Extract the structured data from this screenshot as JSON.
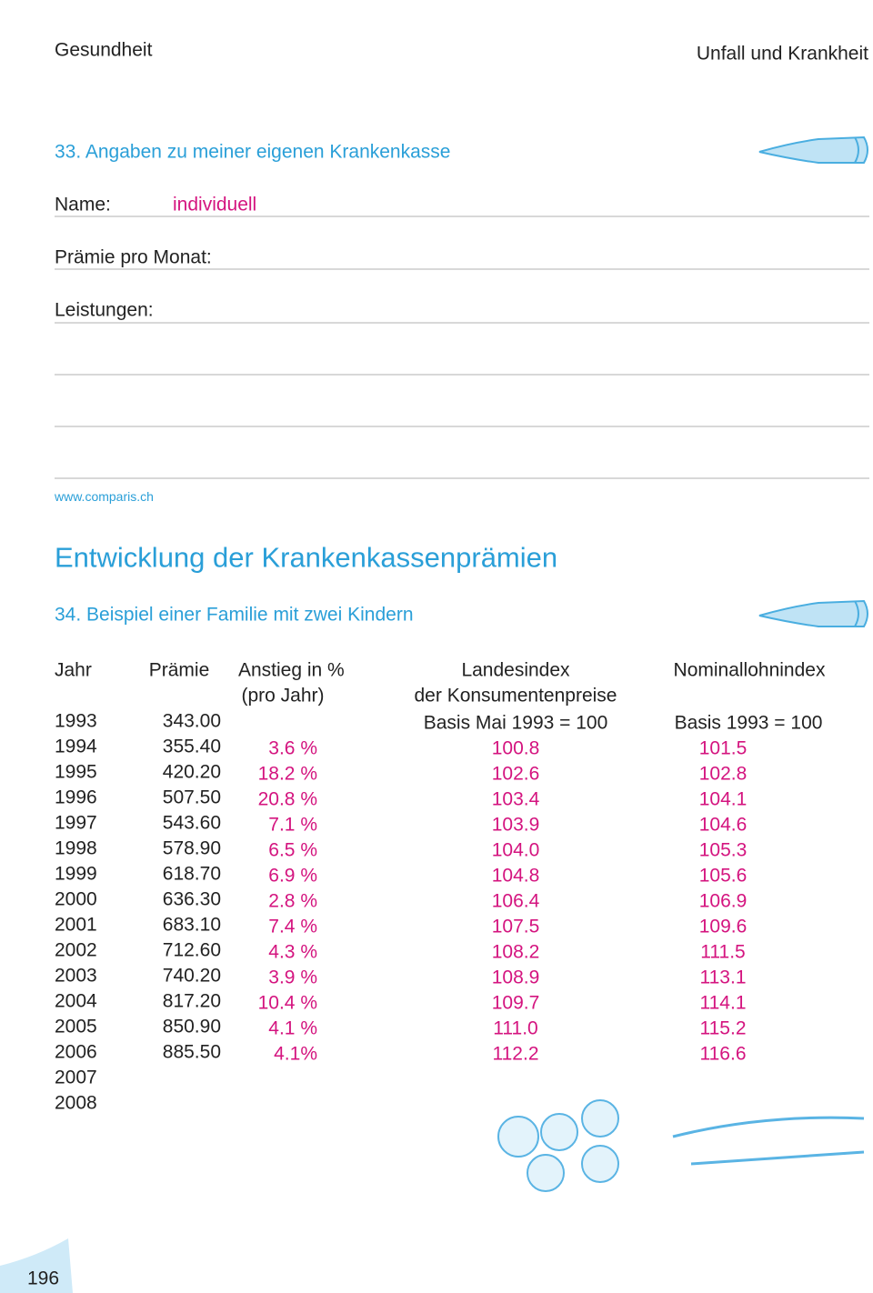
{
  "header": {
    "left": "Gesundheit",
    "right": "Unfall und Krankheit"
  },
  "section33": {
    "title": "33. Angaben zu meiner eigenen Krankenkasse",
    "name_label": "Name:",
    "name_value": "individuell",
    "praemie_label": "Prämie pro Monat:",
    "leistungen_label": "Leistungen:",
    "link": "www.comparis.ch"
  },
  "heading": "Entwicklung der Krankenkassenprämien",
  "section34": {
    "title": "34. Beispiel einer Familie mit zwei Kindern"
  },
  "table": {
    "headers": {
      "jahr": "Jahr",
      "praemie": "Prämie",
      "anstieg": "Anstieg in %",
      "anstieg_sub": "(pro Jahr)",
      "landesindex": "Landesindex",
      "landesindex_sub": "der Konsumentenpreise",
      "lohnindex": "Nominallohnindex"
    },
    "rows": [
      {
        "jahr": "1993",
        "praemie": "343.00",
        "landesindex": "Basis Mai 1993 = 100",
        "lohnindex": "Basis 1993 = 100"
      },
      {
        "jahr": "1994",
        "praemie": "355.40",
        "anstieg": "3.6 %",
        "landesindex": "100.8",
        "lohnindex": "101.5"
      },
      {
        "jahr": "1995",
        "praemie": "420.20",
        "anstieg": "18.2 %",
        "landesindex": "102.6",
        "lohnindex": "102.8"
      },
      {
        "jahr": "1996",
        "praemie": "507.50",
        "anstieg": "20.8 %",
        "landesindex": "103.4",
        "lohnindex": "104.1"
      },
      {
        "jahr": "1997",
        "praemie": "543.60",
        "anstieg": "7.1 %",
        "landesindex": "103.9",
        "lohnindex": "104.6"
      },
      {
        "jahr": "1998",
        "praemie": "578.90",
        "anstieg": "6.5 %",
        "landesindex": "104.0",
        "lohnindex": "105.3"
      },
      {
        "jahr": "1999",
        "praemie": "618.70",
        "anstieg": "6.9 %",
        "landesindex": "104.8",
        "lohnindex": "105.6"
      },
      {
        "jahr": "2000",
        "praemie": "636.30",
        "anstieg": "2.8 %",
        "landesindex": "106.4",
        "lohnindex": "106.9"
      },
      {
        "jahr": "2001",
        "praemie": "683.10",
        "anstieg": "7.4 %",
        "landesindex": "107.5",
        "lohnindex": "109.6"
      },
      {
        "jahr": "2002",
        "praemie": "712.60",
        "anstieg": "4.3 %",
        "landesindex": "108.2",
        "lohnindex": "111.5"
      },
      {
        "jahr": "2003",
        "praemie": "740.20",
        "anstieg": "3.9 %",
        "landesindex": "108.9",
        "lohnindex": "113.1"
      },
      {
        "jahr": "2004",
        "praemie": "817.20",
        "anstieg": "10.4 %",
        "landesindex": "109.7",
        "lohnindex": "114.1"
      },
      {
        "jahr": "2005",
        "praemie": "850.90",
        "anstieg": "4.1 %",
        "landesindex": "111.0",
        "lohnindex": "115.2"
      },
      {
        "jahr": "2006",
        "praemie": "885.50",
        "anstieg": "4.1%",
        "landesindex": "112.2",
        "lohnindex": "116.6"
      },
      {
        "jahr": "2007"
      },
      {
        "jahr": "2008"
      }
    ]
  },
  "page_number": "196"
}
